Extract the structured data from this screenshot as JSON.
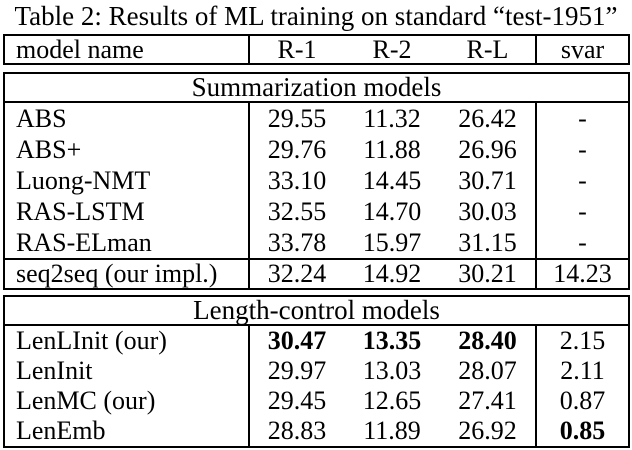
{
  "caption": "Table 2: Results of ML training on standard “test-1951”",
  "header": {
    "model": "model name",
    "r1": "R-1",
    "r2": "R-2",
    "rl": "R-L",
    "svar": "svar"
  },
  "sections": [
    {
      "label": "Summarization models"
    },
    {
      "label": "Length-control models"
    }
  ],
  "rows": [
    {
      "model": "ABS",
      "r1": "29.55",
      "r2": "11.32",
      "rl": "26.42",
      "svar": "-"
    },
    {
      "model": "ABS+",
      "r1": "29.76",
      "r2": "11.88",
      "rl": "26.96",
      "svar": "-"
    },
    {
      "model": "Luong-NMT",
      "r1": "33.10",
      "r2": "14.45",
      "rl": "30.71",
      "svar": "-"
    },
    {
      "model": "RAS-LSTM",
      "r1": "32.55",
      "r2": "14.70",
      "rl": "30.03",
      "svar": "-"
    },
    {
      "model": "RAS-ELman",
      "r1": "33.78",
      "r2": "15.97",
      "rl": "31.15",
      "svar": "-"
    },
    {
      "model": "seq2seq (our impl.)",
      "r1": "32.24",
      "r2": "14.92",
      "rl": "30.21",
      "svar": "14.23"
    },
    {
      "model": "LenLInit (our)",
      "r1": "30.47",
      "r2": "13.35",
      "rl": "28.40",
      "svar": "2.15"
    },
    {
      "model": "LenInit",
      "r1": "29.97",
      "r2": "13.03",
      "rl": "28.07",
      "svar": "2.11"
    },
    {
      "model": "LenMC (our)",
      "r1": "29.45",
      "r2": "12.65",
      "rl": "27.41",
      "svar": "0.87"
    },
    {
      "model": "LenEmb",
      "r1": "28.83",
      "r2": "11.89",
      "rl": "26.92",
      "svar": "0.85"
    }
  ]
}
